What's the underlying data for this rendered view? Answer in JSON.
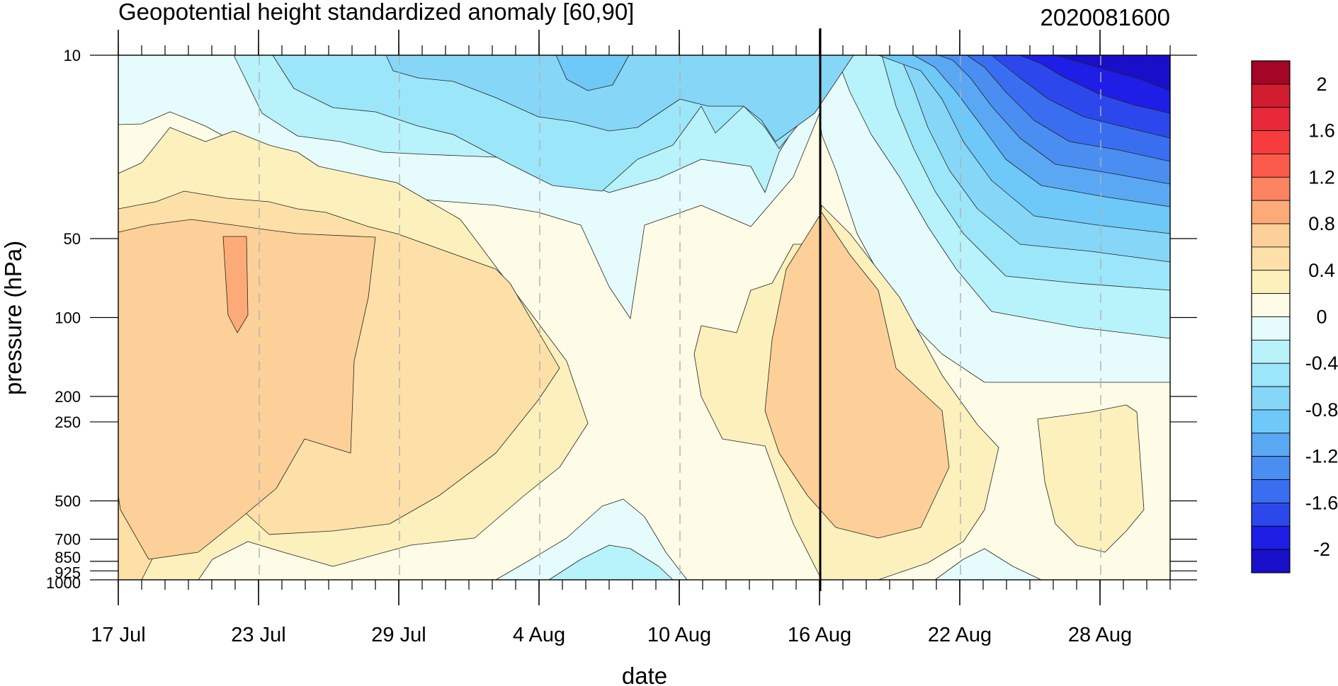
{
  "chart_data": {
    "type": "contour",
    "title": "Geopotential height standardized anomaly [60,90]",
    "date_label": "2020081600",
    "xlabel": "date",
    "ylabel": "pressure (hPa)",
    "x_ticks": [
      "17 Jul",
      "23 Jul",
      "29 Jul",
      "4 Aug",
      "10 Aug",
      "16 Aug",
      "22 Aug",
      "28 Aug"
    ],
    "x_range_days": [
      0,
      45
    ],
    "y_ticks": [
      10,
      50,
      100,
      200,
      250,
      500,
      700,
      850,
      925,
      1000
    ],
    "y_scale": "log",
    "y_range": [
      10,
      1000
    ],
    "reference_line": "16 Aug",
    "dashed_gridlines": [
      "23 Jul",
      "29 Jul",
      "4 Aug",
      "10 Aug",
      "22 Aug",
      "28 Aug"
    ],
    "colorbar": {
      "labels": [
        "2",
        "1.6",
        "1.2",
        "0.8",
        "0.4",
        "0",
        "-0.4",
        "-0.8",
        "-1.2",
        "-1.6",
        "-2"
      ],
      "levels": [
        -2.2,
        -2.0,
        -1.8,
        -1.6,
        -1.4,
        -1.2,
        -1.0,
        -0.8,
        -0.6,
        -0.4,
        -0.2,
        0,
        0.2,
        0.4,
        0.6,
        0.8,
        1.0,
        1.2,
        1.4,
        1.6,
        1.8,
        2.0,
        2.2
      ],
      "colors": [
        "#1a0fc8",
        "#1e1ee6",
        "#2c48ec",
        "#3a6ef0",
        "#4a8ef2",
        "#5aa8f4",
        "#6ec8f8",
        "#86d6f8",
        "#9ce6fa",
        "#b8f2fa",
        "#e6fcfc",
        "#fefce6",
        "#fcf0bc",
        "#fce0a8",
        "#fcd098",
        "#fcab78",
        "#fc8462",
        "#fc5a4a",
        "#f63c3c",
        "#e62838",
        "#d21c30",
        "#a40626"
      ]
    }
  }
}
